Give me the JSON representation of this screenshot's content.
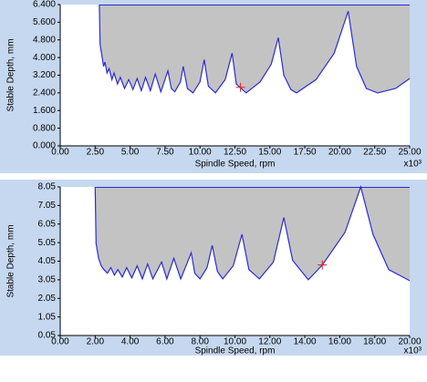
{
  "chart_data": [
    {
      "type": "line",
      "x": [
        2.8,
        2.85,
        3.0,
        3.1,
        3.2,
        3.35,
        3.5,
        3.7,
        3.85,
        4.1,
        4.3,
        4.6,
        4.9,
        5.2,
        5.5,
        5.8,
        6.1,
        6.45,
        6.8,
        7.2,
        7.7,
        7.95,
        8.2,
        8.6,
        8.8,
        9.1,
        9.5,
        10.0,
        10.3,
        10.6,
        11.1,
        11.8,
        12.3,
        12.6,
        13.3,
        14.3,
        15.1,
        15.6,
        16.0,
        16.5,
        16.9,
        18.3,
        19.6,
        20.6,
        21.2,
        21.9,
        22.7,
        24.0,
        25.0
      ],
      "series": [
        {
          "color": "#2b2bd6",
          "values": [
            6.4,
            4.6,
            4.0,
            3.6,
            3.8,
            3.3,
            3.5,
            3.0,
            3.3,
            2.8,
            3.1,
            2.6,
            3.0,
            2.55,
            3.05,
            2.5,
            3.1,
            2.5,
            3.25,
            2.45,
            3.4,
            2.6,
            2.45,
            2.9,
            3.6,
            2.6,
            2.4,
            2.9,
            3.9,
            2.7,
            2.4,
            3.0,
            4.2,
            2.8,
            2.4,
            2.9,
            3.7,
            4.9,
            3.2,
            2.55,
            2.4,
            3.0,
            4.2,
            6.1,
            3.6,
            2.6,
            2.4,
            2.6,
            3.05
          ]
        }
      ],
      "fill_color": "#c3c3c3",
      "marker": {
        "x": 12.9,
        "y": 2.65,
        "color": "#e02020"
      },
      "xlabel": "Spindle Speed, rpm",
      "ylabel": "Stable Depth, mm",
      "x_multiplier": "x10³",
      "xlim": [
        0,
        25
      ],
      "ylim": [
        0,
        6.4
      ],
      "xticks": [
        {
          "value": 0,
          "label": "0.00"
        },
        {
          "value": 2.5,
          "label": "2.50"
        },
        {
          "value": 5,
          "label": "5.00"
        },
        {
          "value": 7.5,
          "label": "7.50"
        },
        {
          "value": 10,
          "label": "10.00"
        },
        {
          "value": 12.5,
          "label": "12.50"
        },
        {
          "value": 15,
          "label": "15.00"
        },
        {
          "value": 17.5,
          "label": "17.50"
        },
        {
          "value": 20,
          "label": "20.00"
        },
        {
          "value": 22.5,
          "label": "22.50"
        },
        {
          "value": 25,
          "label": "25.00"
        }
      ],
      "yticks": [
        {
          "value": 0,
          "label": "0.000"
        },
        {
          "value": 0.8,
          "label": "0.800"
        },
        {
          "value": 1.6,
          "label": "1.600"
        },
        {
          "value": 2.4,
          "label": "2.400"
        },
        {
          "value": 3.2,
          "label": "3.200"
        },
        {
          "value": 4,
          "label": "4.000"
        },
        {
          "value": 4.8,
          "label": "4.800"
        },
        {
          "value": 5.6,
          "label": "5.600"
        },
        {
          "value": 6.4,
          "label": "6.400"
        }
      ]
    },
    {
      "type": "line",
      "x": [
        2.0,
        2.05,
        2.2,
        2.35,
        2.5,
        2.7,
        2.9,
        3.1,
        3.3,
        3.55,
        3.8,
        4.1,
        4.4,
        4.7,
        5.0,
        5.3,
        5.8,
        6.1,
        6.5,
        6.9,
        7.5,
        7.7,
        8.0,
        8.4,
        8.7,
        9.0,
        9.3,
        9.9,
        10.4,
        10.8,
        11.4,
        12.2,
        12.8,
        13.3,
        14.2,
        15.0,
        16.3,
        17.2,
        17.9,
        18.8,
        20.0
      ],
      "series": [
        {
          "color": "#2b2bd6",
          "values": [
            8.05,
            5.0,
            4.2,
            3.8,
            3.6,
            3.4,
            3.7,
            3.3,
            3.6,
            3.2,
            3.7,
            3.15,
            3.8,
            3.1,
            3.9,
            3.1,
            4.0,
            3.1,
            4.2,
            3.1,
            4.5,
            3.4,
            3.1,
            3.7,
            4.9,
            3.5,
            3.1,
            3.8,
            5.5,
            3.6,
            3.1,
            4.0,
            6.4,
            4.1,
            3.05,
            3.85,
            5.6,
            8.05,
            5.5,
            3.6,
            3.0
          ]
        }
      ],
      "fill_color": "#c3c3c3",
      "marker": {
        "x": 15.0,
        "y": 3.85,
        "color": "#e02020"
      },
      "xlabel": "Spindle Speed, rpm",
      "ylabel": "Stable Depth, mm",
      "x_multiplier": "x10³",
      "xlim": [
        0,
        20
      ],
      "ylim": [
        0.05,
        8.05
      ],
      "xticks": [
        {
          "value": 0,
          "label": "0.00"
        },
        {
          "value": 2,
          "label": "2.00"
        },
        {
          "value": 4,
          "label": "4.00"
        },
        {
          "value": 6,
          "label": "6.00"
        },
        {
          "value": 8,
          "label": "8.00"
        },
        {
          "value": 10,
          "label": "10.00"
        },
        {
          "value": 12,
          "label": "12.00"
        },
        {
          "value": 14,
          "label": "14.00"
        },
        {
          "value": 16,
          "label": "16.00"
        },
        {
          "value": 18,
          "label": "18.00"
        },
        {
          "value": 20,
          "label": "20.00"
        }
      ],
      "yticks": [
        0.05,
        1.05,
        2.05,
        3.05,
        4.05,
        5.05,
        6.05,
        7.05,
        8.05
      ]
    }
  ]
}
